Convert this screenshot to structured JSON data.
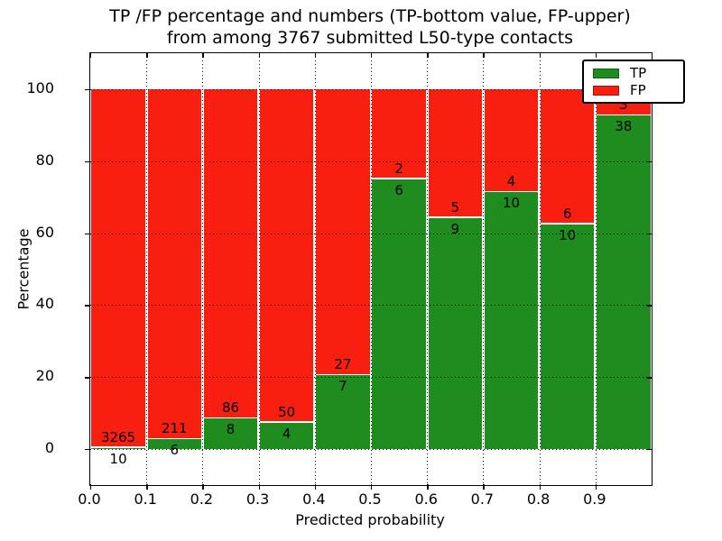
{
  "figure": {
    "title_line1": "TP /FP percentage and numbers (TP-bottom value, FP-upper)",
    "title_line2": "from among 3767 submitted L50-type contacts",
    "background": "#ffffff"
  },
  "chart_data": {
    "type": "bar",
    "stacked": true,
    "normalized": "each bin scaled to 100%, labels show raw counts",
    "title": "TP /FP percentage and numbers (TP-bottom value, FP-upper)\nfrom among 3767 submitted L50-type contacts",
    "xlabel": "Predicted probability",
    "ylabel": "Percentage",
    "total_contacts": 3767,
    "xlim": [
      0.0,
      1.0
    ],
    "ylim": [
      -10,
      110
    ],
    "x_tick_labels": [
      "0.0",
      "0.1",
      "0.2",
      "0.3",
      "0.4",
      "0.5",
      "0.6",
      "0.7",
      "0.8",
      "0.9"
    ],
    "x_tick_positions": [
      0.0,
      0.1,
      0.2,
      0.3,
      0.4,
      0.5,
      0.6,
      0.7,
      0.8,
      0.9
    ],
    "y_tick_labels": [
      "0",
      "20",
      "40",
      "60",
      "80",
      "100"
    ],
    "y_tick_positions": [
      0,
      20,
      40,
      60,
      80,
      100
    ],
    "bin_edges": [
      0.0,
      0.1,
      0.2,
      0.3,
      0.4,
      0.5,
      0.6,
      0.7,
      0.8,
      0.9,
      1.0
    ],
    "series": [
      {
        "name": "TP",
        "color": "#1e8c1e",
        "counts": [
          10,
          6,
          8,
          4,
          7,
          6,
          9,
          10,
          10,
          38
        ]
      },
      {
        "name": "FP",
        "color": "#f81e10",
        "counts": [
          3265,
          211,
          86,
          50,
          27,
          2,
          5,
          4,
          6,
          3
        ]
      }
    ],
    "tp_percent_per_bin": [
      0.31,
      2.76,
      8.51,
      7.41,
      20.59,
      75.0,
      64.29,
      71.43,
      62.5,
      92.68
    ],
    "grid": "dotted, on",
    "legend": {
      "position": "upper right",
      "entries": [
        "TP",
        "FP"
      ]
    }
  }
}
